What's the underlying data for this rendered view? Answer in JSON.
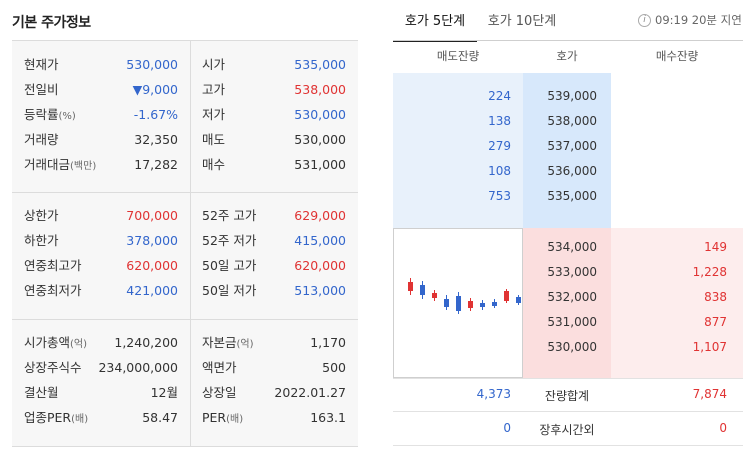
{
  "title": "기본 주가정보",
  "left": {
    "section1": [
      {
        "l1": "현재가",
        "l1s": "",
        "v1": "530,000",
        "c1": "blue",
        "l2": "시가",
        "v2": "535,000",
        "c2": "blue"
      },
      {
        "l1": "전일비",
        "l1s": "",
        "v1": "▼9,000",
        "c1": "blue",
        "l2": "고가",
        "v2": "538,000",
        "c2": "red"
      },
      {
        "l1": "등락률",
        "l1s": "(%)",
        "v1": "-1.67%",
        "c1": "blue",
        "l2": "저가",
        "v2": "530,000",
        "c2": "blue"
      },
      {
        "l1": "거래량",
        "l1s": "",
        "v1": "32,350",
        "c1": "dark",
        "l2": "매도",
        "v2": "530,000",
        "c2": "dark"
      },
      {
        "l1": "거래대금",
        "l1s": "(백만)",
        "v1": "17,282",
        "c1": "dark",
        "l2": "매수",
        "v2": "531,000",
        "c2": "dark"
      }
    ],
    "section2": [
      {
        "l1": "상한가",
        "l1s": "",
        "v1": "700,000",
        "c1": "red",
        "l2": "52주 고가",
        "v2": "629,000",
        "c2": "red"
      },
      {
        "l1": "하한가",
        "l1s": "",
        "v1": "378,000",
        "c1": "blue",
        "l2": "52주 저가",
        "v2": "415,000",
        "c2": "blue"
      },
      {
        "l1": "연중최고가",
        "l1s": "",
        "v1": "620,000",
        "c1": "red",
        "l2": "50일 고가",
        "v2": "620,000",
        "c2": "red"
      },
      {
        "l1": "연중최저가",
        "l1s": "",
        "v1": "421,000",
        "c1": "blue",
        "l2": "50일 저가",
        "v2": "513,000",
        "c2": "blue"
      }
    ],
    "section3": [
      {
        "l1": "시가총액",
        "l1s": "(억)",
        "v1": "1,240,200",
        "c1": "dark",
        "l2": "자본금",
        "l2s": "(억)",
        "v2": "1,170",
        "c2": "dark"
      },
      {
        "l1": "상장주식수",
        "l1s": "",
        "v1": "234,000,000",
        "c1": "dark",
        "l2": "액면가",
        "l2s": "",
        "v2": "500",
        "c2": "dark"
      },
      {
        "l1": "결산월",
        "l1s": "",
        "v1": "12월",
        "c1": "dark",
        "l2": "상장일",
        "l2s": "",
        "v2": "2022.01.27",
        "c2": "dark"
      },
      {
        "l1": "업종PER",
        "l1s": "(배)",
        "v1": "58.47",
        "c1": "dark",
        "l2": "PER",
        "l2s": "(배)",
        "v2": "163.1",
        "c2": "dark"
      }
    ]
  },
  "tabs": {
    "tab1": "호가 5단계",
    "tab2": "호가 10단계"
  },
  "info": {
    "icon": "i",
    "text": "09:19 20분 지연"
  },
  "orderbook": {
    "headers": {
      "ask_qty": "매도잔량",
      "price": "호가",
      "bid_qty": "매수잔량"
    },
    "asks": [
      {
        "qty": "224",
        "price": "539,000"
      },
      {
        "qty": "138",
        "price": "538,000"
      },
      {
        "qty": "279",
        "price": "537,000"
      },
      {
        "qty": "108",
        "price": "536,000"
      },
      {
        "qty": "753",
        "price": "535,000"
      }
    ],
    "bids": [
      {
        "price": "534,000",
        "qty": "149"
      },
      {
        "price": "533,000",
        "qty": "1,228"
      },
      {
        "price": "532,000",
        "qty": "838"
      },
      {
        "price": "531,000",
        "qty": "877"
      },
      {
        "price": "530,000",
        "qty": "1,107"
      }
    ],
    "total": {
      "ask": "4,373",
      "label": "잔량합계",
      "bid": "7,874"
    },
    "after": {
      "ask": "0",
      "label": "장후시간외",
      "bid": "0"
    }
  },
  "chart_data": {
    "type": "candlestick",
    "candles": [
      {
        "dir": "up"
      },
      {
        "dir": "down"
      },
      {
        "dir": "up"
      },
      {
        "dir": "down"
      },
      {
        "dir": "down"
      },
      {
        "dir": "up"
      },
      {
        "dir": "down"
      },
      {
        "dir": "down"
      },
      {
        "dir": "up"
      },
      {
        "dir": "down"
      }
    ],
    "colors": {
      "up": "#e03333",
      "down": "#3366cc"
    }
  }
}
